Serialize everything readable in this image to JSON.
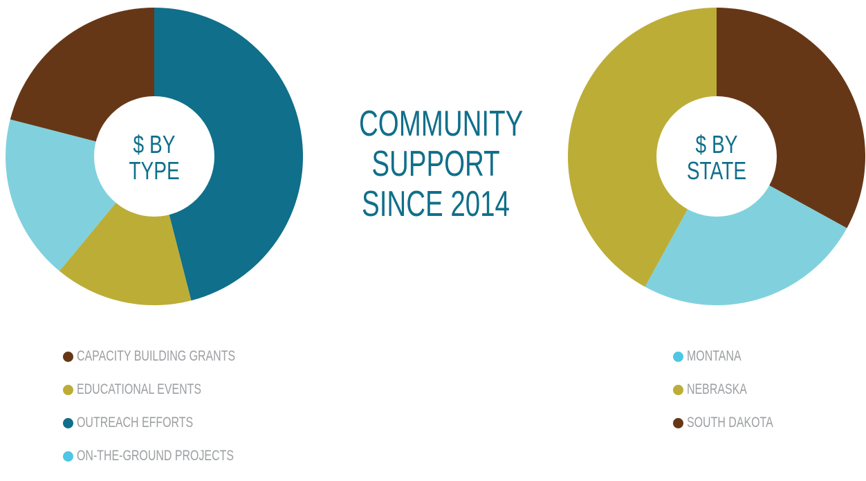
{
  "headline": [
    "COMMUNITY",
    "SUPPORT",
    "SINCE 2014"
  ],
  "chart_data": [
    {
      "type": "pie",
      "title": "$ BY TYPE",
      "center_lines": [
        "$ BY",
        "TYPE"
      ],
      "slices": [
        {
          "label": "OUTREACH EFFORTS",
          "value": 46,
          "color": "#106f8a"
        },
        {
          "label": "EDUCATIONAL EVENTS",
          "value": 15,
          "color": "#bcad37"
        },
        {
          "label": "ON-THE-GROUND PROJECTS",
          "value": 18,
          "color": "#80d1dd"
        },
        {
          "label": "CAPACITY BUILDING GRANTS",
          "value": 21,
          "color": "#663717"
        }
      ],
      "legend": [
        {
          "label": "CAPACITY BUILDING GRANTS",
          "color": "#663717"
        },
        {
          "label": "EDUCATIONAL EVENTS",
          "color": "#bcad37"
        },
        {
          "label": "OUTREACH EFFORTS",
          "color": "#106f8a"
        },
        {
          "label": "ON-THE-GROUND PROJECTS",
          "color": "#4fc6e4"
        }
      ]
    },
    {
      "type": "pie",
      "title": "$ BY STATE",
      "center_lines": [
        "$ BY",
        "STATE"
      ],
      "slices": [
        {
          "label": "SOUTH DAKOTA",
          "value": 33,
          "color": "#663717"
        },
        {
          "label": "MONTANA",
          "value": 25,
          "color": "#80d1dd"
        },
        {
          "label": "NEBRASKA",
          "value": 42,
          "color": "#bcad37"
        }
      ],
      "legend": [
        {
          "label": "MONTANA",
          "color": "#4fc6e4"
        },
        {
          "label": "NEBRASKA",
          "color": "#bcad37"
        },
        {
          "label": "SOUTH DAKOTA",
          "color": "#663717"
        }
      ]
    }
  ]
}
